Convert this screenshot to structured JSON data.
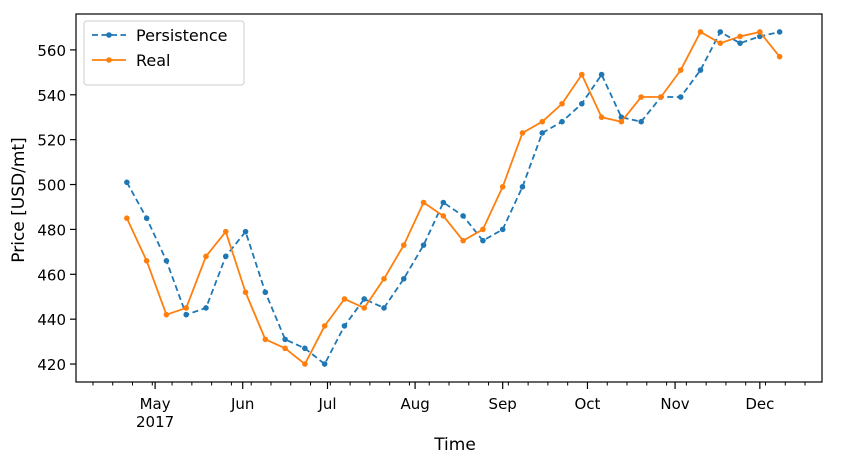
{
  "chart_data": {
    "type": "line",
    "xlabel": "Time",
    "ylabel": "Price [USD/mt]",
    "ylim": [
      412,
      576
    ],
    "yticks": [
      420,
      440,
      460,
      480,
      500,
      520,
      540,
      560
    ],
    "x_ticks": [
      {
        "date": "2017-05-01",
        "label": "May",
        "sublabel": "2017"
      },
      {
        "date": "2017-06-01",
        "label": "Jun"
      },
      {
        "date": "2017-07-01",
        "label": "Jul"
      },
      {
        "date": "2017-08-01",
        "label": "Aug"
      },
      {
        "date": "2017-09-01",
        "label": "Sep"
      },
      {
        "date": "2017-10-01",
        "label": "Oct"
      },
      {
        "date": "2017-11-01",
        "label": "Nov"
      },
      {
        "date": "2017-12-01",
        "label": "Dec"
      }
    ],
    "xlim": [
      "2017-04-03",
      "2017-12-23"
    ],
    "legend_position": "top-left",
    "x": [
      "2017-04-21",
      "2017-04-28",
      "2017-05-05",
      "2017-05-12",
      "2017-05-19",
      "2017-05-26",
      "2017-06-02",
      "2017-06-09",
      "2017-06-16",
      "2017-06-23",
      "2017-06-30",
      "2017-07-07",
      "2017-07-14",
      "2017-07-21",
      "2017-07-28",
      "2017-08-04",
      "2017-08-11",
      "2017-08-18",
      "2017-08-25",
      "2017-09-01",
      "2017-09-08",
      "2017-09-15",
      "2017-09-22",
      "2017-09-29",
      "2017-10-06",
      "2017-10-13",
      "2017-10-20",
      "2017-10-27",
      "2017-11-03",
      "2017-11-10",
      "2017-11-17",
      "2017-11-24",
      "2017-12-01",
      "2017-12-08"
    ],
    "series": [
      {
        "name": "Persistence",
        "color": "#1f77b4",
        "dash": "dashed",
        "values": [
          501,
          485,
          466,
          442,
          445,
          468,
          479,
          452,
          431,
          427,
          420,
          437,
          449,
          445,
          458,
          473,
          492,
          486,
          475,
          480,
          499,
          523,
          528,
          536,
          549,
          530,
          528,
          539,
          539,
          551,
          568,
          563,
          566,
          568
        ]
      },
      {
        "name": "Real",
        "color": "#ff7f0e",
        "dash": "solid",
        "values": [
          485,
          466,
          442,
          445,
          468,
          479,
          452,
          431,
          427,
          420,
          437,
          449,
          445,
          458,
          473,
          492,
          486,
          475,
          480,
          499,
          523,
          528,
          536,
          549,
          530,
          528,
          539,
          539,
          551,
          568,
          563,
          566,
          568,
          557
        ]
      }
    ]
  }
}
